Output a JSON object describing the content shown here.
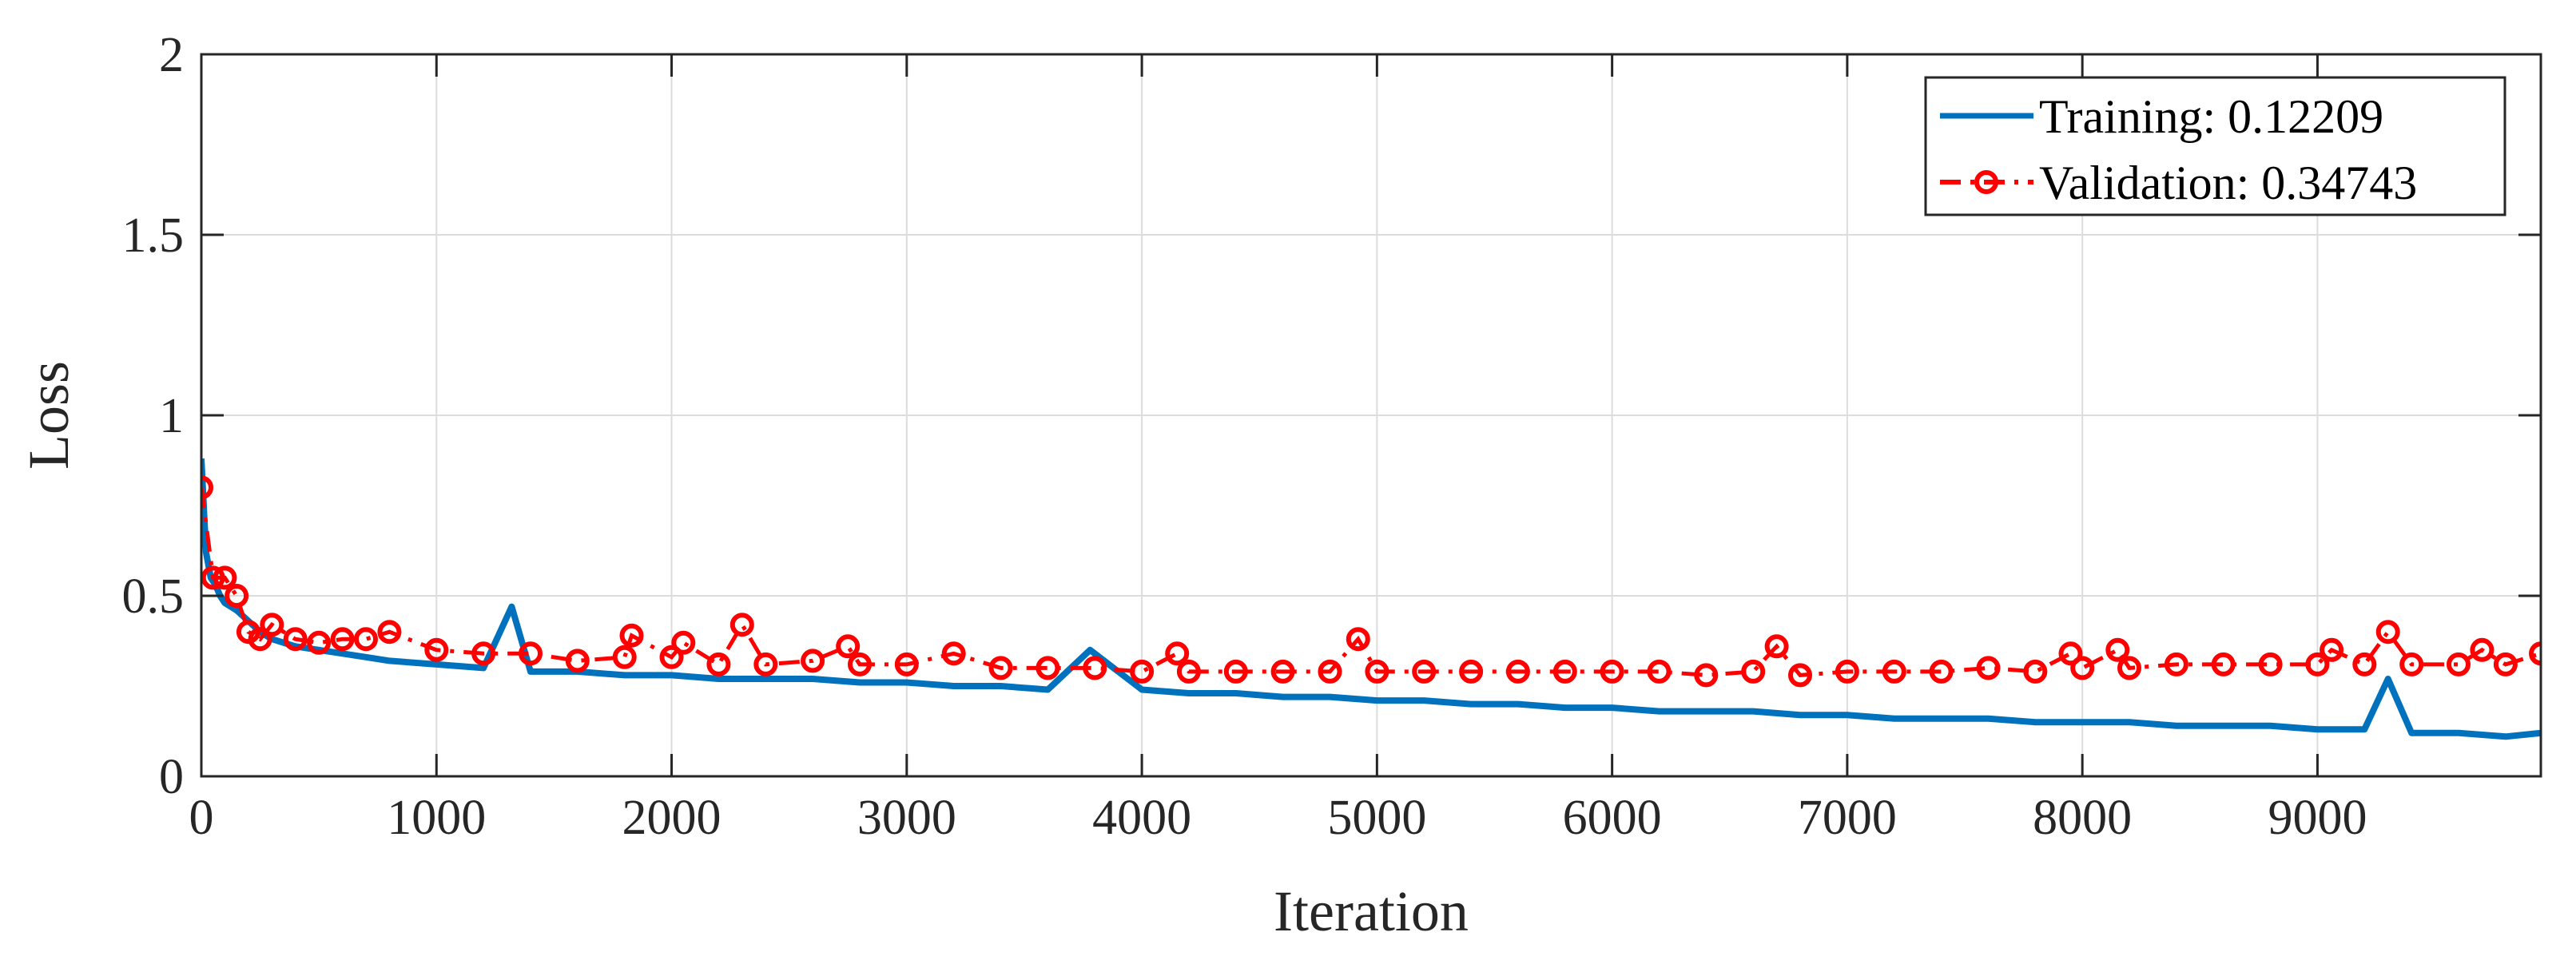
{
  "chart_data": {
    "type": "line",
    "xlabel": "Iteration",
    "ylabel": "Loss",
    "xlim": [
      0,
      9950
    ],
    "ylim": [
      0,
      2
    ],
    "xticks": [
      0,
      1000,
      2000,
      3000,
      4000,
      5000,
      6000,
      7000,
      8000,
      9000
    ],
    "xtick_labels": [
      "0",
      "1000",
      "2000",
      "3000",
      "4000",
      "5000",
      "6000",
      "7000",
      "8000",
      "9000"
    ],
    "yticks": [
      0,
      0.5,
      1,
      1.5,
      2
    ],
    "ytick_labels": [
      "0",
      "0.5",
      "1",
      "1.5",
      "2"
    ],
    "grid": true,
    "legend_position": "top-right",
    "colors": {
      "training": "#0072BD",
      "validation": "#FF0000"
    },
    "series": [
      {
        "name": "Training: 0.12209",
        "style": "solid",
        "x": [
          0,
          20,
          40,
          60,
          80,
          100,
          150,
          200,
          250,
          300,
          400,
          500,
          600,
          700,
          800,
          1000,
          1200,
          1320,
          1400,
          1600,
          1800,
          2000,
          2200,
          2400,
          2600,
          2800,
          3000,
          3200,
          3400,
          3600,
          3780,
          4000,
          4200,
          4400,
          4600,
          4800,
          5000,
          5200,
          5400,
          5600,
          5800,
          6000,
          6200,
          6400,
          6600,
          6800,
          7000,
          7200,
          7400,
          7600,
          7800,
          8000,
          8200,
          8400,
          8600,
          8800,
          9000,
          9200,
          9300,
          9400,
          9600,
          9800,
          9950
        ],
        "y": [
          0.88,
          0.62,
          0.55,
          0.53,
          0.5,
          0.48,
          0.46,
          0.43,
          0.4,
          0.38,
          0.36,
          0.35,
          0.34,
          0.33,
          0.32,
          0.31,
          0.3,
          0.47,
          0.29,
          0.29,
          0.28,
          0.28,
          0.27,
          0.27,
          0.27,
          0.26,
          0.26,
          0.25,
          0.25,
          0.24,
          0.35,
          0.24,
          0.23,
          0.23,
          0.22,
          0.22,
          0.21,
          0.21,
          0.2,
          0.2,
          0.19,
          0.19,
          0.18,
          0.18,
          0.18,
          0.17,
          0.17,
          0.16,
          0.16,
          0.16,
          0.15,
          0.15,
          0.15,
          0.14,
          0.14,
          0.14,
          0.13,
          0.13,
          0.27,
          0.12,
          0.12,
          0.11,
          0.12
        ]
      },
      {
        "name": "Validation: 0.34743",
        "style": "dash-dot",
        "marker": "circle",
        "x": [
          0,
          50,
          100,
          150,
          200,
          250,
          300,
          400,
          500,
          600,
          700,
          800,
          1000,
          1200,
          1400,
          1600,
          1800,
          1830,
          2000,
          2050,
          2200,
          2300,
          2400,
          2600,
          2750,
          2800,
          3000,
          3200,
          3400,
          3600,
          3800,
          4000,
          4150,
          4200,
          4400,
          4600,
          4800,
          4920,
          5000,
          5200,
          5400,
          5600,
          5800,
          6000,
          6200,
          6400,
          6600,
          6700,
          6800,
          7000,
          7200,
          7400,
          7600,
          7800,
          7950,
          8000,
          8150,
          8200,
          8400,
          8600,
          8800,
          9000,
          9060,
          9200,
          9300,
          9400,
          9600,
          9700,
          9800,
          9950
        ],
        "y": [
          0.8,
          0.55,
          0.55,
          0.5,
          0.4,
          0.38,
          0.42,
          0.38,
          0.37,
          0.38,
          0.38,
          0.4,
          0.35,
          0.34,
          0.34,
          0.32,
          0.33,
          0.39,
          0.33,
          0.37,
          0.31,
          0.42,
          0.31,
          0.32,
          0.36,
          0.31,
          0.31,
          0.34,
          0.3,
          0.3,
          0.3,
          0.29,
          0.34,
          0.29,
          0.29,
          0.29,
          0.29,
          0.38,
          0.29,
          0.29,
          0.29,
          0.29,
          0.29,
          0.29,
          0.29,
          0.28,
          0.29,
          0.36,
          0.28,
          0.29,
          0.29,
          0.29,
          0.3,
          0.29,
          0.34,
          0.3,
          0.35,
          0.3,
          0.31,
          0.31,
          0.31,
          0.31,
          0.35,
          0.31,
          0.4,
          0.31,
          0.31,
          0.35,
          0.31,
          0.34
        ]
      }
    ]
  }
}
